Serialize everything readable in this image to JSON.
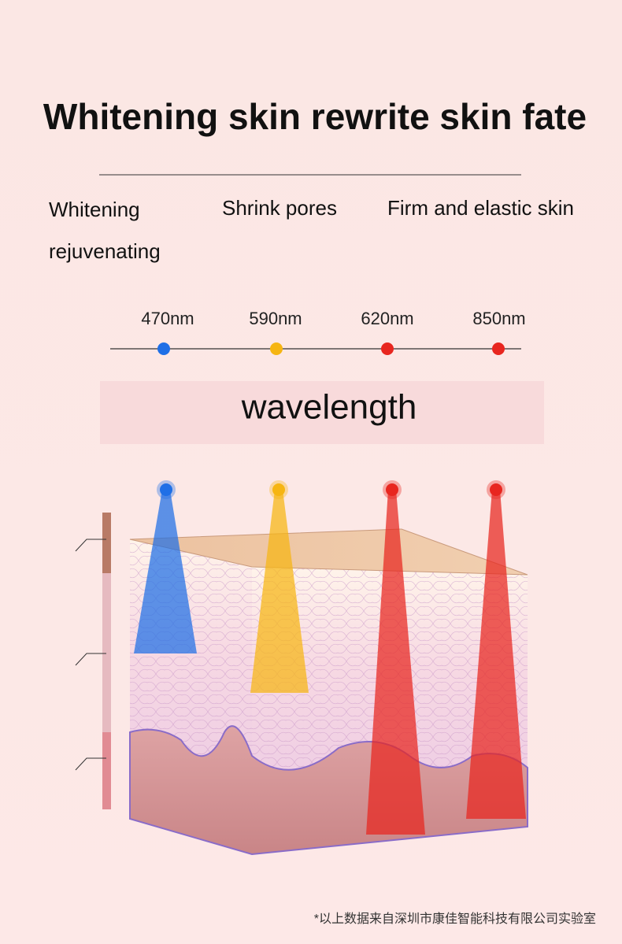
{
  "header": {
    "title": "Whitening skin rewrite skin fate"
  },
  "benefits": [
    "Whitening rejuvenating",
    "Shrink pores",
    "Firm and elastic skin"
  ],
  "wavelengths": [
    {
      "label": "470nm",
      "color": "#1f6fe6"
    },
    {
      "label": "590nm",
      "color": "#f6b512"
    },
    {
      "label": "620nm",
      "color": "#e8261f"
    },
    {
      "label": "850nm",
      "color": "#e8261f"
    }
  ],
  "wavelength_label": "wavelength",
  "footnote": "*以上数据来自深圳市康佳智能科技有限公司实验室"
}
